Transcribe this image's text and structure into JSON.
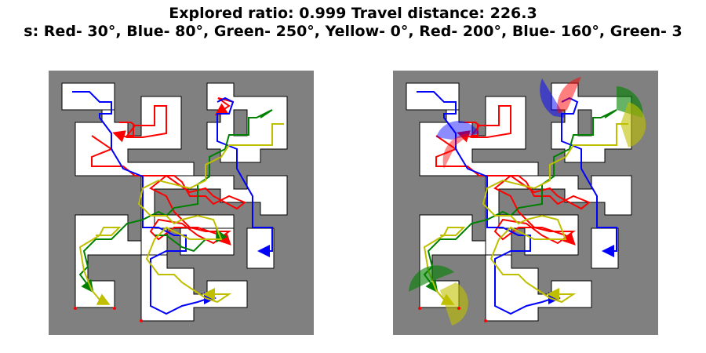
{
  "header": {
    "line1": "Explored ratio: 0.999  Travel distance: 226.3",
    "line2": "s: Red- 30°, Blue- 80°, Green- 250°, Yellow- 0°, Red- 200°, Blue- 160°, Green- 3"
  },
  "colors": {
    "background": "#808080",
    "free_space": "#ffffff",
    "red": "#ff0000",
    "blue": "#0000ff",
    "green": "#008000",
    "yellow": "#bfbf00"
  }
}
